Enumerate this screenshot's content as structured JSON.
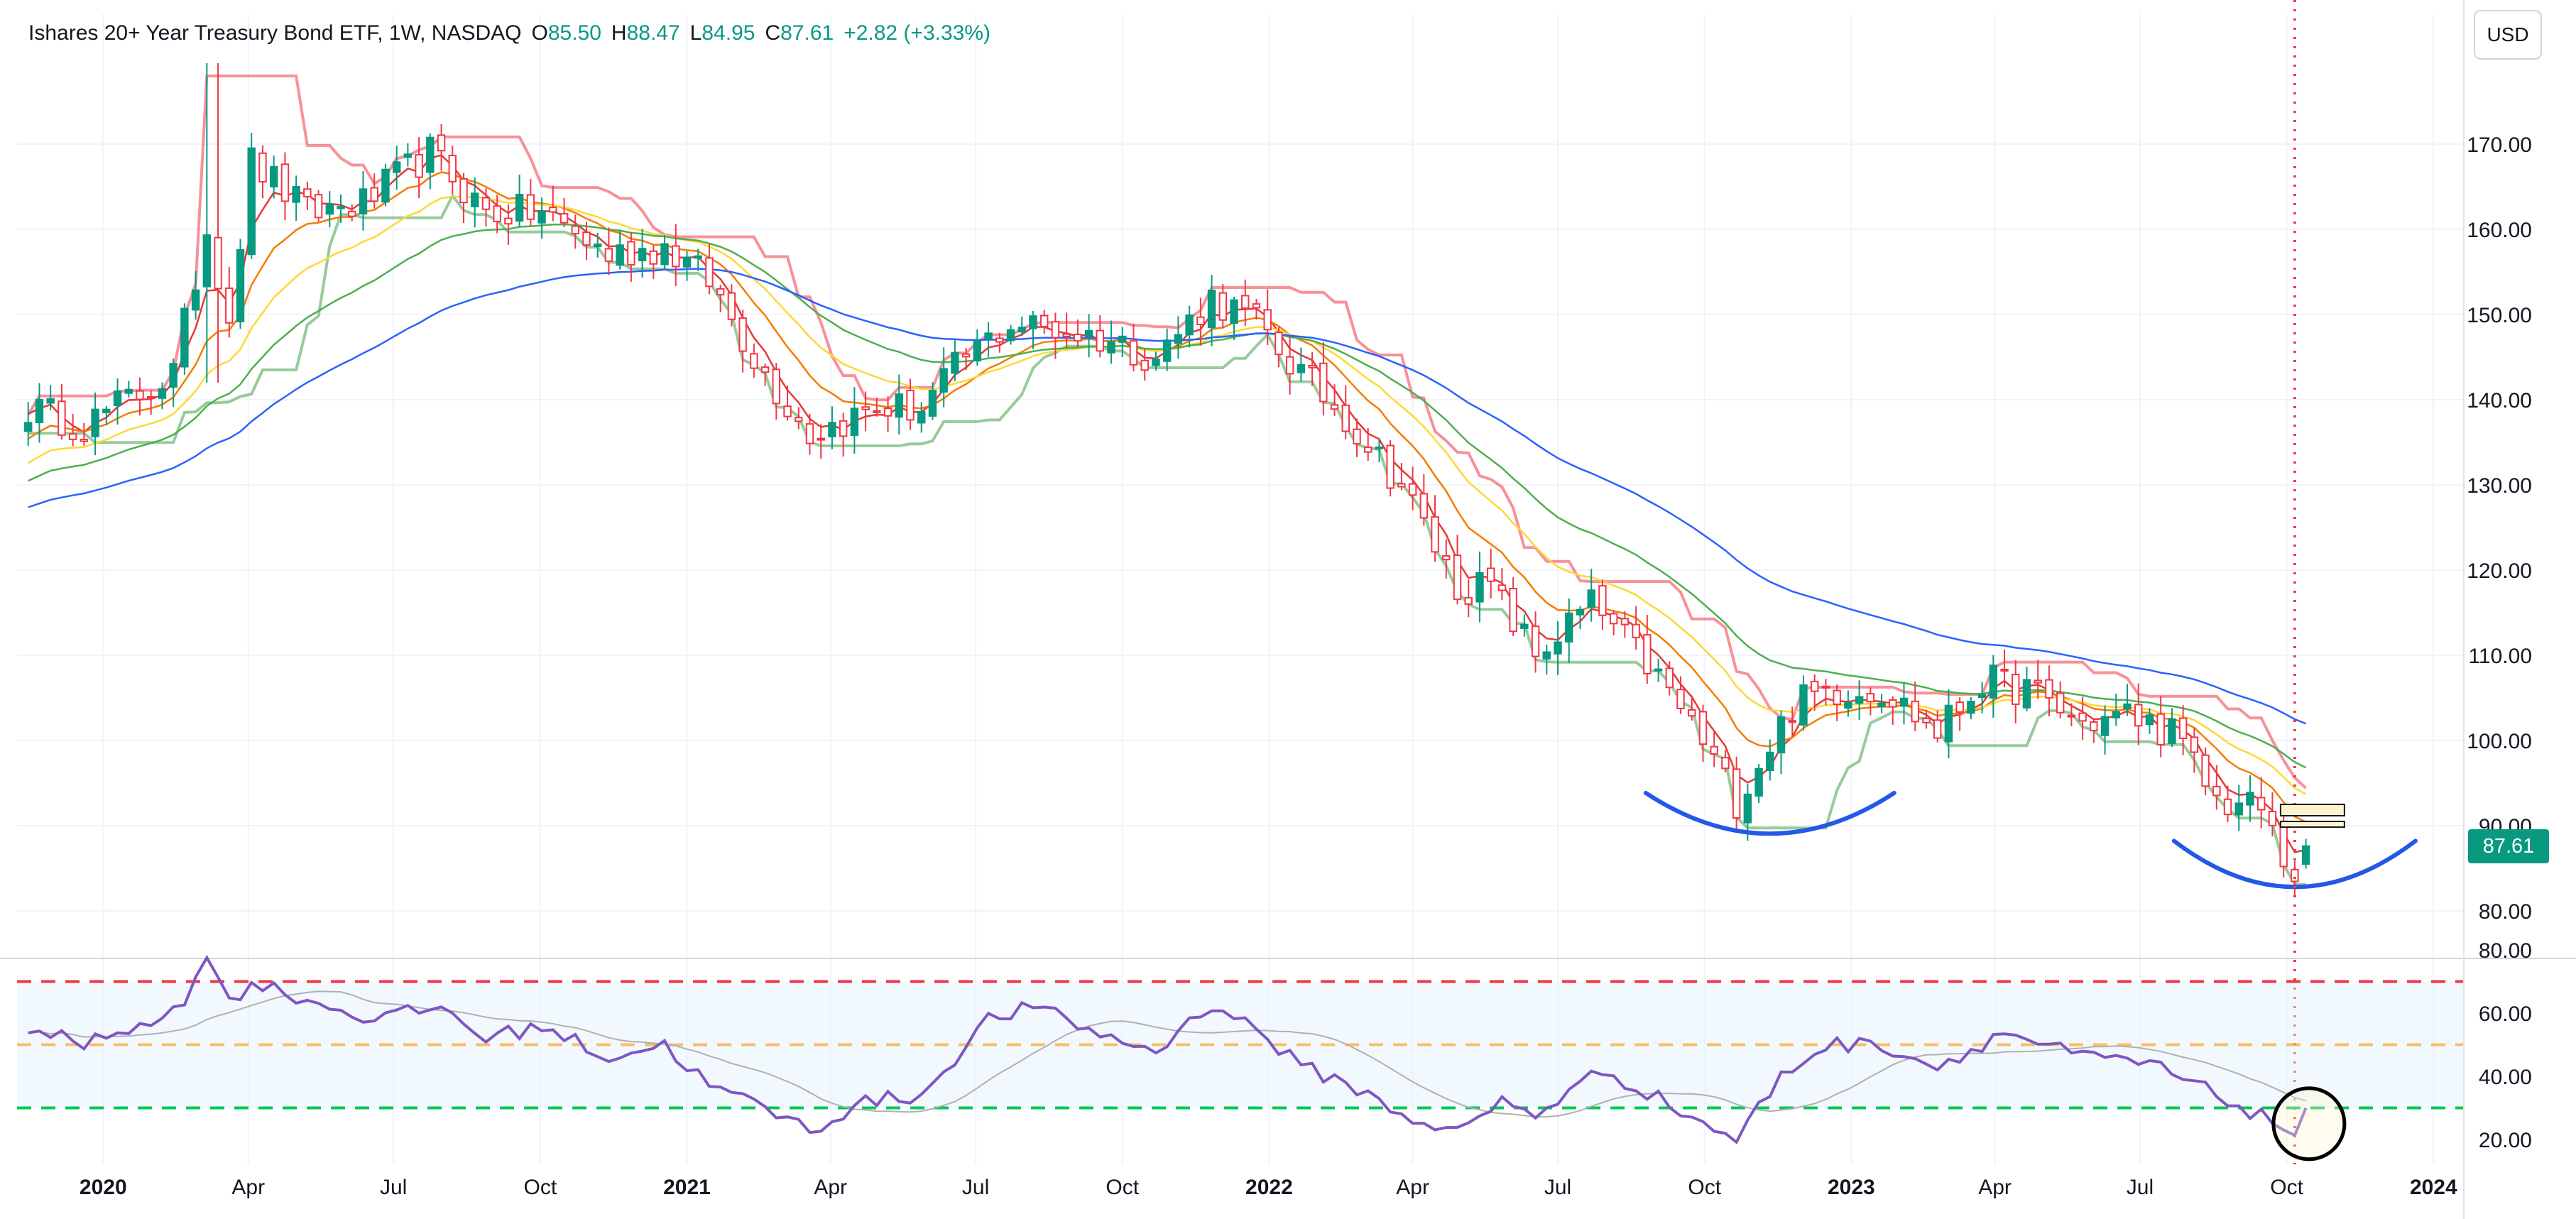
{
  "header": {
    "title": "Ishares 20+ Year Treasury Bond ETF, 1W, NASDAQ",
    "open_label": "O",
    "open": "85.50",
    "high_label": "H",
    "high": "88.47",
    "low_label": "L",
    "low": "84.95",
    "close_label": "C",
    "close": "87.61",
    "change": "+2.82 (+3.33%)"
  },
  "currency_button": "USD",
  "last_price_label": "87.61",
  "colors": {
    "up": "#089981",
    "down": "#f23645",
    "ema_fast": "#e53935",
    "ema_orange": "#f57c00",
    "ema_yellow": "#fdd835",
    "ema_green": "#4caf50",
    "ema_blue": "#2962ff",
    "rsi": "#7e57c2",
    "rsi_ma": "#b0b0b0",
    "annotation_arc": "#2458e6",
    "vertical_marker": "#f23645"
  },
  "chart_data": [
    {
      "type": "candlestick",
      "title": "Ishares 20+ Year Treasury Bond ETF, 1W, NASDAQ",
      "ylim": [
        75,
        180
      ],
      "y_ticks": [
        80,
        90,
        100,
        110,
        120,
        130,
        140,
        150,
        160,
        170
      ],
      "y_tick_labels": [
        "80.00",
        "90.00",
        "100.00",
        "110.00",
        "120.00",
        "130.00",
        "140.00",
        "150.00",
        "160.00",
        "170.00"
      ],
      "x_tick_labels": [
        "2020",
        "Apr",
        "Jul",
        "Oct",
        "2021",
        "Apr",
        "Jul",
        "Oct",
        "2022",
        "Apr",
        "Jul",
        "Oct",
        "2023",
        "Apr",
        "Jul",
        "Oct",
        "2024"
      ],
      "x_tick_dates": [
        "2020-01-01",
        "2020-04-01",
        "2020-07-01",
        "2020-10-01",
        "2021-01-01",
        "2021-04-01",
        "2021-07-01",
        "2021-10-01",
        "2022-01-01",
        "2022-04-01",
        "2022-07-01",
        "2022-10-01",
        "2023-01-01",
        "2023-04-01",
        "2023-07-01",
        "2023-10-01",
        "2024-01-01"
      ],
      "close_anchors": [
        [
          "2019-11-15",
          139
        ],
        [
          "2019-12-20",
          137
        ],
        [
          "2020-01-17",
          140
        ],
        [
          "2020-02-14",
          143
        ],
        [
          "2020-03-06",
          160
        ],
        [
          "2020-03-20",
          150
        ],
        [
          "2020-04-03",
          168
        ],
        [
          "2020-05-08",
          162
        ],
        [
          "2020-06-12",
          163
        ],
        [
          "2020-07-24",
          169
        ],
        [
          "2020-08-28",
          162
        ],
        [
          "2020-10-02",
          162
        ],
        [
          "2020-11-13",
          157
        ],
        [
          "2020-12-18",
          158
        ],
        [
          "2021-01-15",
          154
        ],
        [
          "2021-02-19",
          143
        ],
        [
          "2021-03-19",
          136
        ],
        [
          "2021-04-30",
          139
        ],
        [
          "2021-05-28",
          139
        ],
        [
          "2021-06-25",
          145
        ],
        [
          "2021-07-23",
          149
        ],
        [
          "2021-08-27",
          148
        ],
        [
          "2021-09-24",
          147
        ],
        [
          "2021-10-22",
          145
        ],
        [
          "2021-11-26",
          152
        ],
        [
          "2021-12-24",
          149
        ],
        [
          "2022-01-21",
          143
        ],
        [
          "2022-02-18",
          138
        ],
        [
          "2022-03-25",
          130
        ],
        [
          "2022-04-29",
          118
        ],
        [
          "2022-05-20",
          118
        ],
        [
          "2022-06-17",
          110
        ],
        [
          "2022-07-22",
          116
        ],
        [
          "2022-08-26",
          109
        ],
        [
          "2022-09-23",
          102
        ],
        [
          "2022-10-21",
          93
        ],
        [
          "2022-11-25",
          104
        ],
        [
          "2022-12-16",
          106
        ],
        [
          "2023-01-20",
          106
        ],
        [
          "2023-02-24",
          101
        ],
        [
          "2023-03-24",
          107
        ],
        [
          "2023-04-21",
          106
        ],
        [
          "2023-05-26",
          102
        ],
        [
          "2023-06-23",
          103
        ],
        [
          "2023-07-21",
          101
        ],
        [
          "2023-08-18",
          93
        ],
        [
          "2023-09-15",
          92
        ],
        [
          "2023-09-29",
          86
        ],
        [
          "2023-10-06",
          84.5
        ],
        [
          "2023-10-13",
          87.6
        ]
      ],
      "last_candle": {
        "open": 85.5,
        "high": 88.47,
        "low": 84.95,
        "close": 87.61
      },
      "overlays": [
        {
          "kind": "EMA",
          "color": "#e53935"
        },
        {
          "kind": "EMA",
          "color": "#f57c00"
        },
        {
          "kind": "EMA",
          "color": "#fdd835"
        },
        {
          "kind": "EMA",
          "color": "#4caf50"
        },
        {
          "kind": "EMA",
          "color": "#2962ff"
        },
        {
          "kind": "stepped band (upper red / lower green)"
        }
      ],
      "annotations": [
        "two blue rounded-bottom arcs (Oct 2022 and Oct 2023)",
        "red dotted vertical marker at Oct 2023",
        "small horizontal boxes near 90–92"
      ],
      "grid": true
    },
    {
      "type": "line",
      "panel": "RSI",
      "ylim": [
        15,
        85
      ],
      "y_ticks": [
        20,
        40,
        60,
        80
      ],
      "y_tick_labels": [
        "20.00",
        "40.00",
        "60.00",
        "80.00"
      ],
      "levels": [
        70,
        50,
        30
      ],
      "level_colors": [
        "#f23645",
        "#ff9800",
        "#00c853"
      ],
      "rsi_anchors": [
        [
          "2019-11-15",
          55
        ],
        [
          "2019-12-20",
          50
        ],
        [
          "2020-01-24",
          57
        ],
        [
          "2020-02-21",
          62
        ],
        [
          "2020-03-06",
          80
        ],
        [
          "2020-03-20",
          63
        ],
        [
          "2020-04-03",
          70
        ],
        [
          "2020-05-15",
          63
        ],
        [
          "2020-06-19",
          58
        ],
        [
          "2020-07-31",
          62
        ],
        [
          "2020-08-28",
          52
        ],
        [
          "2020-10-02",
          56
        ],
        [
          "2020-11-13",
          46
        ],
        [
          "2020-12-18",
          50
        ],
        [
          "2021-01-15",
          37
        ],
        [
          "2021-02-19",
          30
        ],
        [
          "2021-03-19",
          23
        ],
        [
          "2021-04-23",
          32
        ],
        [
          "2021-05-28",
          34
        ],
        [
          "2021-07-09",
          58
        ],
        [
          "2021-08-06",
          62
        ],
        [
          "2021-09-24",
          52
        ],
        [
          "2021-10-22",
          48
        ],
        [
          "2021-11-26",
          63
        ],
        [
          "2021-12-24",
          55
        ],
        [
          "2022-01-21",
          43
        ],
        [
          "2022-02-18",
          38
        ],
        [
          "2022-03-25",
          28
        ],
        [
          "2022-04-29",
          22
        ],
        [
          "2022-05-27",
          32
        ],
        [
          "2022-06-17",
          28
        ],
        [
          "2022-07-29",
          42
        ],
        [
          "2022-08-26",
          35
        ],
        [
          "2022-09-23",
          27
        ],
        [
          "2022-10-21",
          20
        ],
        [
          "2022-11-18",
          40
        ],
        [
          "2022-12-16",
          50
        ],
        [
          "2023-01-20",
          50
        ],
        [
          "2023-02-24",
          43
        ],
        [
          "2023-04-07",
          54
        ],
        [
          "2023-05-26",
          46
        ],
        [
          "2023-07-07",
          44
        ],
        [
          "2023-08-18",
          34
        ],
        [
          "2023-09-29",
          24
        ],
        [
          "2023-10-06",
          22
        ],
        [
          "2023-10-13",
          30
        ]
      ],
      "annotations": [
        "circle around RSI low near Oct 2023"
      ]
    }
  ]
}
